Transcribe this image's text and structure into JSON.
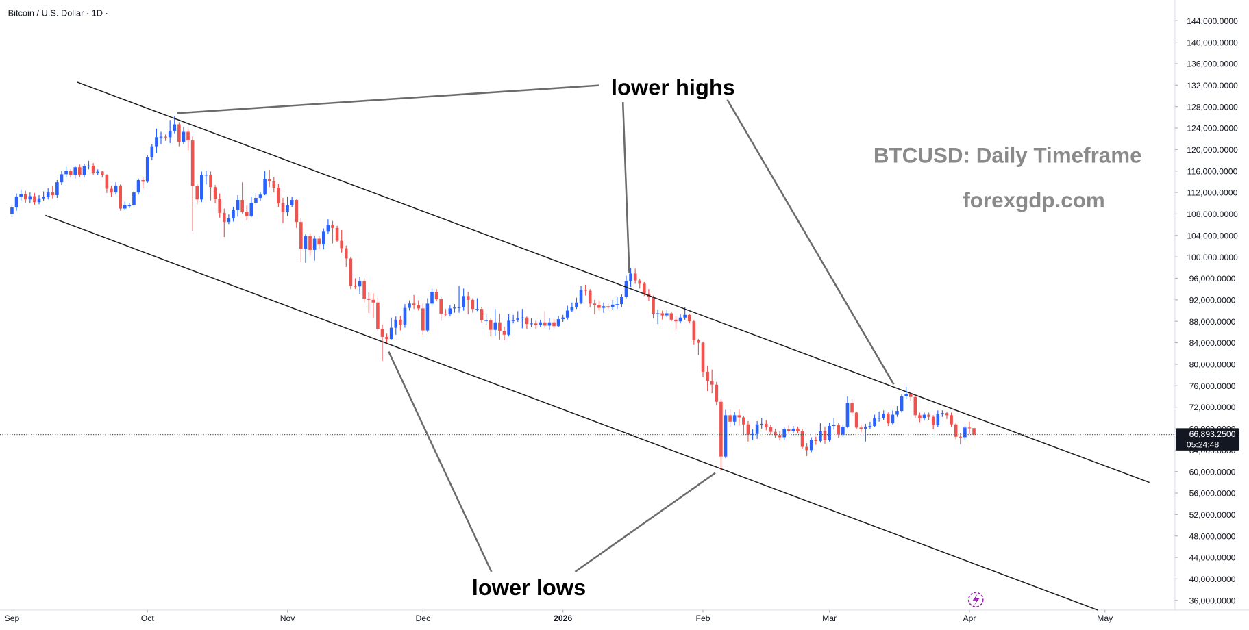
{
  "chart_data": {
    "type": "candlestick",
    "title": "Bitcoin / U.S. Dollar · 1D ·",
    "up_color": "#2962ff",
    "down_color": "#ef5350",
    "xlim": [
      -2.65,
      257.5
    ],
    "xticks": [
      {
        "value": 0,
        "label": "Sep"
      },
      {
        "value": 30,
        "label": "Oct"
      },
      {
        "value": 61,
        "label": "Nov"
      },
      {
        "value": 91,
        "label": "Dec"
      },
      {
        "value": 122,
        "label": "2026"
      },
      {
        "value": 153,
        "label": "Feb"
      },
      {
        "value": 181,
        "label": "Mar"
      },
      {
        "value": 212,
        "label": "Apr"
      },
      {
        "value": 242,
        "label": "May"
      }
    ],
    "ylim": [
      34200,
      147860
    ],
    "yticks": [
      {
        "value": 36000,
        "label": "36,000.0000"
      },
      {
        "value": 40000,
        "label": "40,000.0000"
      },
      {
        "value": 44000,
        "label": "44,000.0000"
      },
      {
        "value": 48000,
        "label": "48,000.0000"
      },
      {
        "value": 52000,
        "label": "52,000.0000"
      },
      {
        "value": 56000,
        "label": "56,000.0000"
      },
      {
        "value": 60000,
        "label": "60,000.0000"
      },
      {
        "value": 64000,
        "label": "64,000.0000"
      },
      {
        "value": 68000,
        "label": "68,000.0000"
      },
      {
        "value": 72000,
        "label": "72,000.0000"
      },
      {
        "value": 76000,
        "label": "76,000.0000"
      },
      {
        "value": 80000,
        "label": "80,000.0000"
      },
      {
        "value": 84000,
        "label": "84,000.0000"
      },
      {
        "value": 88000,
        "label": "88,000.0000"
      },
      {
        "value": 92000,
        "label": "92,000.0000"
      },
      {
        "value": 96000,
        "label": "96,000.0000"
      },
      {
        "value": 100000,
        "label": "100,000.0000"
      },
      {
        "value": 104000,
        "label": "104,000.0000"
      },
      {
        "value": 108000,
        "label": "108,000.0000"
      },
      {
        "value": 112000,
        "label": "112,000.0000"
      },
      {
        "value": 116000,
        "label": "116,000.0000"
      },
      {
        "value": 120000,
        "label": "120,000.0000"
      },
      {
        "value": 124000,
        "label": "124,000.0000"
      },
      {
        "value": 128000,
        "label": "128,000.0000"
      },
      {
        "value": 132000,
        "label": "132,000.0000"
      },
      {
        "value": 136000,
        "label": "136,000.0000"
      },
      {
        "value": 140000,
        "label": "140,000.0000"
      },
      {
        "value": 144000,
        "label": "144,000.0000"
      }
    ],
    "last_price": {
      "value": 66893.25,
      "label": "66,893.2500"
    },
    "countdown": "05:24:48",
    "annotations": {
      "highs": "lower highs",
      "lows": "lower lows",
      "heading": "BTCUSD: Daily Timeframe",
      "source": "forexgdp.com"
    },
    "candles": [
      [
        108000,
        109800,
        107400,
        109200
      ],
      [
        109200,
        111800,
        108600,
        111200
      ],
      [
        111200,
        112600,
        110500,
        111700
      ],
      [
        111700,
        112300,
        110100,
        110700
      ],
      [
        110700,
        112000,
        110000,
        111300
      ],
      [
        111300,
        111900,
        109700,
        110200
      ],
      [
        110200,
        111500,
        109800,
        110900
      ],
      [
        110900,
        112200,
        110400,
        111200
      ],
      [
        111200,
        112800,
        110700,
        112000
      ],
      [
        112000,
        113200,
        110900,
        111500
      ],
      [
        111500,
        114300,
        111000,
        113900
      ],
      [
        113900,
        116000,
        113400,
        115400
      ],
      [
        115400,
        116800,
        114900,
        116000
      ],
      [
        116000,
        116300,
        114800,
        115300
      ],
      [
        115300,
        117000,
        114600,
        116700
      ],
      [
        116700,
        117200,
        114900,
        115300
      ],
      [
        115300,
        117300,
        114800,
        116900
      ],
      [
        116900,
        117900,
        116300,
        117000
      ],
      [
        117000,
        117500,
        115300,
        115700
      ],
      [
        115700,
        116300,
        115200,
        115900
      ],
      [
        115900,
        116000,
        114800,
        115300
      ],
      [
        115300,
        115400,
        111900,
        112700
      ],
      [
        112700,
        113300,
        111200,
        112000
      ],
      [
        112000,
        113900,
        111600,
        113300
      ],
      [
        113300,
        113500,
        108600,
        109000
      ],
      [
        109000,
        110300,
        108700,
        109600
      ],
      [
        109600,
        110100,
        109100,
        109600
      ],
      [
        109600,
        112300,
        109300,
        112000
      ],
      [
        112000,
        114600,
        111600,
        114300
      ],
      [
        114300,
        114800,
        112800,
        114000
      ],
      [
        114000,
        118900,
        113800,
        118600
      ],
      [
        118600,
        121000,
        118000,
        120600
      ],
      [
        120600,
        123900,
        119300,
        122300
      ],
      [
        122300,
        123300,
        121000,
        122400
      ],
      [
        122400,
        122800,
        121600,
        122300
      ],
      [
        122300,
        125500,
        121200,
        123500
      ],
      [
        123500,
        126200,
        123000,
        124700
      ],
      [
        124700,
        125100,
        120600,
        121400
      ],
      [
        121400,
        124200,
        121000,
        123300
      ],
      [
        123300,
        123800,
        119900,
        121700
      ],
      [
        121700,
        122400,
        104800,
        113200
      ],
      [
        113200,
        113600,
        109800,
        110700
      ],
      [
        110700,
        115900,
        110200,
        115200
      ],
      [
        115200,
        116000,
        113500,
        115300
      ],
      [
        115300,
        115900,
        110500,
        113000
      ],
      [
        113000,
        113400,
        110000,
        110800
      ],
      [
        110800,
        111800,
        107300,
        108200
      ],
      [
        108200,
        109000,
        103700,
        106500
      ],
      [
        106500,
        107900,
        106100,
        107200
      ],
      [
        107200,
        109300,
        106600,
        108700
      ],
      [
        108700,
        111500,
        107500,
        110600
      ],
      [
        110600,
        113900,
        108100,
        108400
      ],
      [
        108400,
        109600,
        106800,
        107600
      ],
      [
        107600,
        111200,
        107400,
        110100
      ],
      [
        110100,
        111900,
        109600,
        111000
      ],
      [
        111000,
        112000,
        110500,
        111600
      ],
      [
        111600,
        116000,
        111500,
        114500
      ],
      [
        114500,
        116200,
        113000,
        114100
      ],
      [
        114100,
        114900,
        112000,
        112900
      ],
      [
        112900,
        113600,
        109300,
        110000
      ],
      [
        110000,
        111000,
        106300,
        108300
      ],
      [
        108300,
        111200,
        107600,
        109600
      ],
      [
        109600,
        111200,
        109300,
        110600
      ],
      [
        110600,
        110700,
        105400,
        106500
      ],
      [
        106500,
        107300,
        99000,
        101500
      ],
      [
        101500,
        104200,
        98900,
        103900
      ],
      [
        103900,
        104400,
        100300,
        101300
      ],
      [
        101300,
        104000,
        99300,
        103400
      ],
      [
        103400,
        103900,
        101500,
        102300
      ],
      [
        102300,
        105300,
        101400,
        104700
      ],
      [
        104700,
        107000,
        104300,
        106000
      ],
      [
        106000,
        106700,
        102500,
        105400
      ],
      [
        105400,
        105800,
        102800,
        103000
      ],
      [
        103000,
        105000,
        100800,
        101600
      ],
      [
        101600,
        102100,
        98100,
        99700
      ],
      [
        99700,
        100000,
        94000,
        94600
      ],
      [
        94600,
        96000,
        94000,
        94500
      ],
      [
        94500,
        96300,
        93000,
        95500
      ],
      [
        95500,
        96000,
        91500,
        92200
      ],
      [
        92200,
        93400,
        89600,
        92000
      ],
      [
        92000,
        93200,
        88600,
        91500
      ],
      [
        91500,
        92400,
        86200,
        86600
      ],
      [
        86600,
        87400,
        80600,
        85100
      ],
      [
        85100,
        85700,
        83800,
        84700
      ],
      [
        84700,
        88700,
        84600,
        86800
      ],
      [
        86800,
        88900,
        85500,
        88300
      ],
      [
        88300,
        89000,
        86300,
        87400
      ],
      [
        87400,
        91200,
        86800,
        90500
      ],
      [
        90500,
        91900,
        90000,
        91300
      ],
      [
        91300,
        92900,
        90300,
        91000
      ],
      [
        91000,
        91900,
        90000,
        90400
      ],
      [
        90400,
        91300,
        85500,
        86300
      ],
      [
        86300,
        92300,
        86000,
        91300
      ],
      [
        91300,
        94100,
        90900,
        93500
      ],
      [
        93500,
        94000,
        91700,
        92100
      ],
      [
        92100,
        92500,
        88100,
        89400
      ],
      [
        89400,
        90300,
        88900,
        89300
      ],
      [
        89300,
        91100,
        88900,
        90400
      ],
      [
        90400,
        91200,
        89600,
        90600
      ],
      [
        90600,
        94600,
        89600,
        90600
      ],
      [
        90600,
        94100,
        90000,
        92700
      ],
      [
        92700,
        93500,
        89300,
        92000
      ],
      [
        92000,
        92300,
        89600,
        90300
      ],
      [
        90300,
        92300,
        89900,
        90300
      ],
      [
        90300,
        90600,
        87800,
        88200
      ],
      [
        88200,
        89300,
        87400,
        88200
      ],
      [
        88200,
        88500,
        85200,
        86400
      ],
      [
        86400,
        90300,
        85300,
        87800
      ],
      [
        87800,
        89400,
        84600,
        86200
      ],
      [
        86200,
        87000,
        84500,
        85500
      ],
      [
        85500,
        89300,
        85200,
        88100
      ],
      [
        88100,
        89200,
        87600,
        88200
      ],
      [
        88200,
        89900,
        87900,
        88600
      ],
      [
        88600,
        90300,
        86700,
        88700
      ],
      [
        88700,
        88900,
        86600,
        87500
      ],
      [
        87500,
        88600,
        86900,
        87600
      ],
      [
        87600,
        88100,
        86600,
        87300
      ],
      [
        87300,
        88300,
        86900,
        87800
      ],
      [
        87800,
        89900,
        86800,
        87200
      ],
      [
        87200,
        88600,
        86400,
        87800
      ],
      [
        87800,
        88400,
        86800,
        87100
      ],
      [
        87100,
        89000,
        86900,
        88400
      ],
      [
        88400,
        89200,
        87900,
        88700
      ],
      [
        88700,
        90900,
        88300,
        90000
      ],
      [
        90000,
        91500,
        89700,
        90600
      ],
      [
        90600,
        92400,
        90300,
        91500
      ],
      [
        91500,
        94600,
        91200,
        93900
      ],
      [
        93900,
        94800,
        92800,
        93700
      ],
      [
        93700,
        94000,
        90600,
        91300
      ],
      [
        91300,
        92000,
        89300,
        91000
      ],
      [
        91000,
        91900,
        90000,
        90500
      ],
      [
        90500,
        91500,
        89600,
        90800
      ],
      [
        90800,
        91300,
        90000,
        90600
      ],
      [
        90600,
        92000,
        90100,
        91100
      ],
      [
        91100,
        92500,
        90300,
        91200
      ],
      [
        91200,
        93000,
        90600,
        92600
      ],
      [
        92600,
        96500,
        92300,
        95500
      ],
      [
        95500,
        97900,
        94400,
        96900
      ],
      [
        96900,
        97800,
        95000,
        95600
      ],
      [
        95600,
        95900,
        94100,
        95000
      ],
      [
        95000,
        95300,
        92700,
        93000
      ],
      [
        93000,
        94000,
        91800,
        92500
      ],
      [
        92500,
        92800,
        88600,
        89400
      ],
      [
        89400,
        90200,
        87500,
        89500
      ],
      [
        89500,
        90000,
        88300,
        89100
      ],
      [
        89100,
        90200,
        88800,
        89500
      ],
      [
        89500,
        89800,
        88000,
        88300
      ],
      [
        88300,
        88900,
        86400,
        88000
      ],
      [
        88000,
        89300,
        87600,
        88700
      ],
      [
        88700,
        90600,
        88300,
        89200
      ],
      [
        89200,
        89400,
        87600,
        88000
      ],
      [
        88000,
        88300,
        83600,
        84500
      ],
      [
        84500,
        84700,
        81700,
        84000
      ],
      [
        84000,
        84200,
        77600,
        78600
      ],
      [
        78600,
        79700,
        75000,
        76900
      ],
      [
        76900,
        79000,
        74600,
        76200
      ],
      [
        76200,
        76700,
        72300,
        73000
      ],
      [
        73000,
        73400,
        60100,
        62800
      ],
      [
        62800,
        71500,
        62500,
        70500
      ],
      [
        70500,
        71600,
        68400,
        69300
      ],
      [
        69300,
        71100,
        68600,
        70500
      ],
      [
        70500,
        71600,
        68600,
        70100
      ],
      [
        70100,
        70400,
        66900,
        68800
      ],
      [
        68800,
        69400,
        65600,
        66900
      ],
      [
        66900,
        67900,
        65900,
        67000
      ],
      [
        67000,
        69400,
        66100,
        68800
      ],
      [
        68800,
        70000,
        68000,
        68900
      ],
      [
        68900,
        69600,
        67700,
        68300
      ],
      [
        68300,
        68700,
        66900,
        67400
      ],
      [
        67400,
        68000,
        66200,
        66800
      ],
      [
        66800,
        67500,
        65800,
        66400
      ],
      [
        66400,
        68300,
        65900,
        67900
      ],
      [
        67900,
        68600,
        67000,
        67600
      ],
      [
        67600,
        68500,
        67200,
        68000
      ],
      [
        68000,
        68400,
        67100,
        67600
      ],
      [
        67600,
        68000,
        64200,
        64600
      ],
      [
        64600,
        65300,
        62900,
        64000
      ],
      [
        64000,
        66400,
        63600,
        65900
      ],
      [
        65900,
        66500,
        65000,
        65700
      ],
      [
        65700,
        69000,
        65400,
        67500
      ],
      [
        67500,
        68400,
        65200,
        65900
      ],
      [
        65900,
        69100,
        65600,
        68500
      ],
      [
        68500,
        70000,
        67800,
        68700
      ],
      [
        68700,
        69000,
        66300,
        66900
      ],
      [
        66900,
        68800,
        66500,
        68300
      ],
      [
        68300,
        74000,
        68100,
        72800
      ],
      [
        72800,
        73400,
        70400,
        71000
      ],
      [
        71000,
        71200,
        67900,
        68200
      ],
      [
        68200,
        68700,
        67300,
        68000
      ],
      [
        68000,
        68900,
        65600,
        68400
      ],
      [
        68400,
        69300,
        67900,
        68500
      ],
      [
        68500,
        70600,
        68300,
        69900
      ],
      [
        69900,
        71200,
        69300,
        70000
      ],
      [
        70000,
        71400,
        69600,
        70800
      ],
      [
        70800,
        71000,
        68500,
        69000
      ],
      [
        69000,
        71400,
        68800,
        70600
      ],
      [
        70600,
        72200,
        70200,
        71300
      ],
      [
        71300,
        74500,
        71000,
        74000
      ],
      [
        74000,
        75800,
        73600,
        74500
      ],
      [
        74500,
        74900,
        73200,
        73900
      ],
      [
        73900,
        74200,
        70000,
        70500
      ],
      [
        70500,
        71000,
        69200,
        69900
      ],
      [
        69900,
        71000,
        69500,
        70600
      ],
      [
        70600,
        71000,
        69600,
        70200
      ],
      [
        70200,
        70500,
        67900,
        68700
      ],
      [
        68700,
        71400,
        68300,
        70700
      ],
      [
        70700,
        71400,
        70200,
        70900
      ],
      [
        70900,
        71200,
        69800,
        70500
      ],
      [
        70500,
        71000,
        68300,
        68800
      ],
      [
        68800,
        69000,
        66000,
        66500
      ],
      [
        66500,
        67200,
        65100,
        66400
      ],
      [
        66400,
        68500,
        65900,
        68200
      ],
      [
        68200,
        69300,
        67000,
        68100
      ],
      [
        68100,
        68400,
        66300,
        66893.25
      ]
    ]
  }
}
